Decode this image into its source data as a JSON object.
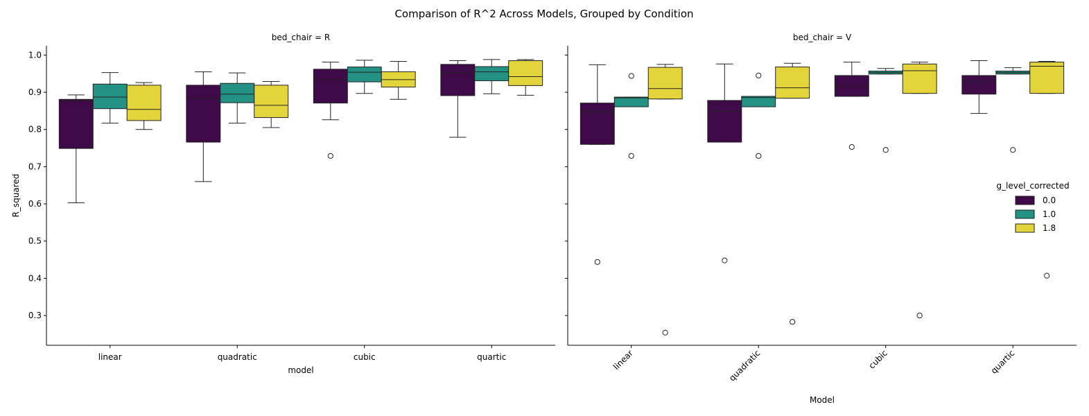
{
  "chart_data": {
    "type": "box",
    "title": "Comparison of R^2 Across Models, Grouped by Condition",
    "ylabel": "R_squared",
    "ylim": [
      0.22,
      1.025
    ],
    "yticks": [
      "0.3",
      "0.4",
      "0.5",
      "0.6",
      "0.7",
      "0.8",
      "0.9",
      "1.0"
    ],
    "categories": [
      "linear",
      "quadratic",
      "cubic",
      "quartic"
    ],
    "legend": {
      "title": "g_level_corrected",
      "position": "right",
      "entries": [
        "0.0",
        "1.0",
        "1.8"
      ]
    },
    "colors": [
      "#440154",
      "#21918c",
      "#fde725"
    ],
    "box_fill_colors": [
      "#3e0a48",
      "#239184",
      "#e2d43a"
    ],
    "panels": [
      {
        "title": "bed_chair = R",
        "xlabel": "model",
        "xtick_rotation": 0,
        "boxes": [
          [
            {
              "whislo": 0.603,
              "q1": 0.749,
              "med": 0.877,
              "q3": 0.881,
              "whishi": 0.893,
              "fliers": []
            },
            {
              "whislo": 0.817,
              "q1": 0.856,
              "med": 0.887,
              "q3": 0.922,
              "whishi": 0.953,
              "fliers": []
            },
            {
              "whislo": 0.8,
              "q1": 0.824,
              "med": 0.854,
              "q3": 0.919,
              "whishi": 0.926,
              "fliers": []
            }
          ],
          [
            {
              "whislo": 0.66,
              "q1": 0.766,
              "med": 0.884,
              "q3": 0.919,
              "whishi": 0.955,
              "fliers": []
            },
            {
              "whislo": 0.817,
              "q1": 0.872,
              "med": 0.895,
              "q3": 0.924,
              "whishi": 0.952,
              "fliers": []
            },
            {
              "whislo": 0.805,
              "q1": 0.832,
              "med": 0.865,
              "q3": 0.919,
              "whishi": 0.929,
              "fliers": []
            }
          ],
          [
            {
              "whislo": 0.826,
              "q1": 0.871,
              "med": 0.934,
              "q3": 0.962,
              "whishi": 0.981,
              "fliers": [
                0.729
              ]
            },
            {
              "whislo": 0.897,
              "q1": 0.928,
              "med": 0.954,
              "q3": 0.968,
              "whishi": 0.986,
              "fliers": []
            },
            {
              "whislo": 0.881,
              "q1": 0.914,
              "med": 0.934,
              "q3": 0.955,
              "whishi": 0.983,
              "fliers": []
            }
          ],
          [
            {
              "whislo": 0.779,
              "q1": 0.891,
              "med": 0.953,
              "q3": 0.975,
              "whishi": 0.985,
              "fliers": []
            },
            {
              "whislo": 0.896,
              "q1": 0.931,
              "med": 0.955,
              "q3": 0.969,
              "whishi": 0.988,
              "fliers": []
            },
            {
              "whislo": 0.892,
              "q1": 0.918,
              "med": 0.942,
              "q3": 0.985,
              "whishi": 0.988,
              "fliers": []
            }
          ]
        ]
      },
      {
        "title": "bed_chair = V",
        "xlabel": "Model",
        "xtick_rotation": -45,
        "boxes": [
          [
            {
              "whislo": 0.76,
              "q1": 0.76,
              "med": 0.848,
              "q3": 0.871,
              "whishi": 0.974,
              "fliers": [
                0.444
              ]
            },
            {
              "whislo": 0.861,
              "q1": 0.861,
              "med": 0.885,
              "q3": 0.887,
              "whishi": 0.887,
              "fliers": [
                0.944,
                0.729
              ]
            },
            {
              "whislo": 0.882,
              "q1": 0.882,
              "med": 0.91,
              "q3": 0.967,
              "whishi": 0.975,
              "fliers": [
                0.254
              ]
            }
          ],
          [
            {
              "whislo": 0.766,
              "q1": 0.766,
              "med": 0.849,
              "q3": 0.878,
              "whishi": 0.976,
              "fliers": [
                0.448
              ]
            },
            {
              "whislo": 0.861,
              "q1": 0.861,
              "med": 0.886,
              "q3": 0.889,
              "whishi": 0.889,
              "fliers": [
                0.945,
                0.729
              ]
            },
            {
              "whislo": 0.884,
              "q1": 0.884,
              "med": 0.912,
              "q3": 0.968,
              "whishi": 0.978,
              "fliers": [
                0.283
              ]
            }
          ],
          [
            {
              "whislo": 0.889,
              "q1": 0.889,
              "med": 0.918,
              "q3": 0.945,
              "whishi": 0.981,
              "fliers": [
                0.753
              ]
            },
            {
              "whislo": 0.949,
              "q1": 0.949,
              "med": 0.953,
              "q3": 0.957,
              "whishi": 0.964,
              "fliers": [
                0.745
              ]
            },
            {
              "whislo": 0.897,
              "q1": 0.897,
              "med": 0.958,
              "q3": 0.976,
              "whishi": 0.981,
              "fliers": [
                0.3
              ]
            }
          ],
          [
            {
              "whislo": 0.843,
              "q1": 0.895,
              "med": 0.928,
              "q3": 0.945,
              "whishi": 0.985,
              "fliers": []
            },
            {
              "whislo": 0.949,
              "q1": 0.949,
              "med": 0.953,
              "q3": 0.957,
              "whishi": 0.966,
              "fliers": [
                0.745
              ]
            },
            {
              "whislo": 0.897,
              "q1": 0.897,
              "med": 0.97,
              "q3": 0.981,
              "whishi": 0.983,
              "fliers": [
                0.407
              ]
            }
          ]
        ]
      }
    ]
  }
}
